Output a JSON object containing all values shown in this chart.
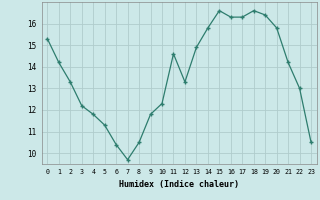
{
  "x": [
    0,
    1,
    2,
    3,
    4,
    5,
    6,
    7,
    8,
    9,
    10,
    11,
    12,
    13,
    14,
    15,
    16,
    17,
    18,
    19,
    20,
    21,
    22,
    23
  ],
  "y": [
    15.3,
    14.2,
    13.3,
    12.2,
    11.8,
    11.3,
    10.4,
    9.7,
    10.5,
    11.8,
    12.3,
    14.6,
    13.3,
    14.9,
    15.8,
    16.6,
    16.3,
    16.3,
    16.6,
    16.4,
    15.8,
    14.2,
    13.0,
    10.5
  ],
  "xlim": [
    -0.5,
    23.5
  ],
  "ylim": [
    9.5,
    17.0
  ],
  "yticks": [
    10,
    11,
    12,
    13,
    14,
    15,
    16
  ],
  "xticks": [
    0,
    1,
    2,
    3,
    4,
    5,
    6,
    7,
    8,
    9,
    10,
    11,
    12,
    13,
    14,
    15,
    16,
    17,
    18,
    19,
    20,
    21,
    22,
    23
  ],
  "xlabel": "Humidex (Indice chaleur)",
  "line_color": "#2e7d6e",
  "marker": "+",
  "bg_color": "#cce8e8",
  "grid_color": "#b0cccc"
}
